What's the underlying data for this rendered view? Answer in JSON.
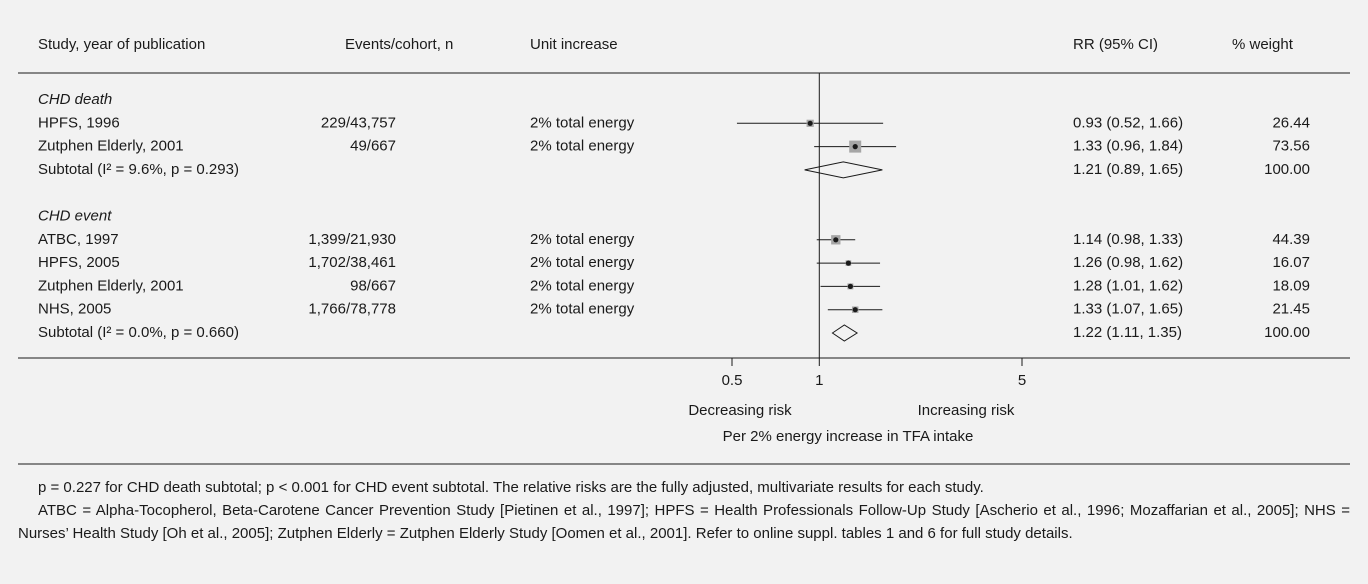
{
  "chart_data": {
    "type": "forest",
    "columns": [
      "Study, year of publication",
      "Events/cohort, n",
      "Unit increase",
      "RR (95% CI)",
      "% weight"
    ],
    "groups": [
      {
        "name": "CHD death",
        "studies": [
          {
            "study": "HPFS, 1996",
            "events": "229/43,757",
            "unit": "2% total energy",
            "rr": 0.93,
            "ci": [
              0.52,
              1.66
            ],
            "rr_label": "0.93 (0.52, 1.66)",
            "weight": 26.44
          },
          {
            "study": "Zutphen Elderly, 2001",
            "events": "49/667",
            "unit": "2% total energy",
            "rr": 1.33,
            "ci": [
              0.96,
              1.84
            ],
            "rr_label": "1.33 (0.96, 1.84)",
            "weight": 73.56
          }
        ],
        "subtotal": {
          "label": "Subtotal (I² = 9.6%, p = 0.293)",
          "rr": 1.21,
          "ci": [
            0.89,
            1.65
          ],
          "rr_label": "1.21 (0.89, 1.65)",
          "weight": 100,
          "weight_label": "100.00"
        }
      },
      {
        "name": "CHD event",
        "studies": [
          {
            "study": "ATBC, 1997",
            "events": "1,399/21,930",
            "unit": "2% total energy",
            "rr": 1.14,
            "ci": [
              0.98,
              1.33
            ],
            "rr_label": "1.14 (0.98, 1.33)",
            "weight": 44.39
          },
          {
            "study": "HPFS, 2005",
            "events": "1,702/38,461",
            "unit": "2% total energy",
            "rr": 1.26,
            "ci": [
              0.98,
              1.62
            ],
            "rr_label": "1.26 (0.98, 1.62)",
            "weight": 16.07
          },
          {
            "study": "Zutphen Elderly, 2001",
            "events": "98/667",
            "unit": "2% total energy",
            "rr": 1.28,
            "ci": [
              1.01,
              1.62
            ],
            "rr_label": "1.28 (1.01, 1.62)",
            "weight": 18.09
          },
          {
            "study": "NHS, 2005",
            "events": "1,766/78,778",
            "unit": "2% total energy",
            "rr": 1.33,
            "ci": [
              1.07,
              1.65
            ],
            "rr_label": "1.33 (1.07, 1.65)",
            "weight": 21.45
          }
        ],
        "subtotal": {
          "label": "Subtotal (I² = 0.0%, p = 0.660)",
          "rr": 1.22,
          "ci": [
            1.11,
            1.35
          ],
          "rr_label": "1.22 (1.11, 1.35)",
          "weight": 100,
          "weight_label": "100.00"
        }
      }
    ],
    "xlim": [
      0.5,
      5
    ],
    "xticks": [
      0.5,
      1,
      5
    ],
    "log_x": true,
    "xlabel_left": "Decreasing risk",
    "xlabel_right": "Increasing risk",
    "xlabel": "Per 2% energy increase in TFA intake",
    "marker_color": "#a6a6a6",
    "line_color": "#1a1a1a"
  },
  "footnotes": [
    "p = 0.227 for CHD death subtotal; p < 0.001 for CHD event subtotal. The relative risks are the fully adjusted, multivariate results for each study.",
    "ATBC = Alpha-Tocopherol, Beta-Carotene Cancer Prevention Study [Pietinen et al., 1997]; HPFS = Health Professionals Follow-Up Study [Ascherio et al., 1996; Mozaffarian et al., 2005]; NHS = Nurses’ Health Study [Oh et al., 2005]; Zutphen Elderly = Zutphen Elderly Study [Oomen et al., 2001]. Refer to online suppl. tables 1 and 6 for full study details."
  ]
}
